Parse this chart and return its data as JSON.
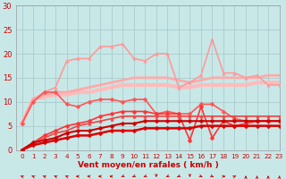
{
  "x": [
    0,
    1,
    2,
    3,
    4,
    5,
    6,
    7,
    8,
    9,
    10,
    11,
    12,
    13,
    14,
    15,
    16,
    17,
    18,
    19,
    20,
    21,
    22,
    23
  ],
  "series": [
    {
      "y": [
        0,
        1,
        1.5,
        2,
        2.5,
        3,
        3,
        3.5,
        4,
        4,
        4,
        4.5,
        4.5,
        4.5,
        4.5,
        4.5,
        5,
        5,
        5,
        5,
        5,
        5,
        5,
        5
      ],
      "color": "#dd0000",
      "lw": 1.8,
      "marker": "D",
      "ms": 2.5,
      "zorder": 5
    },
    {
      "y": [
        0,
        1.5,
        2,
        2.5,
        3.5,
        4,
        4,
        4.5,
        5,
        5.5,
        5.5,
        6,
        6,
        6,
        6,
        6,
        6,
        6,
        6,
        6,
        6,
        6,
        6,
        6
      ],
      "color": "#cc0000",
      "lw": 1.5,
      "marker": "D",
      "ms": 2.5,
      "zorder": 5
    },
    {
      "y": [
        5.5,
        10.5,
        11,
        11.5,
        11.5,
        12,
        12,
        12.5,
        13,
        13.5,
        13.5,
        13.5,
        13.5,
        13.5,
        13,
        13,
        13.5,
        13.5,
        13.5,
        13.5,
        13.5,
        14,
        14,
        14
      ],
      "color": "#ffbbbb",
      "lw": 3.0,
      "marker": null,
      "ms": 0,
      "zorder": 2
    },
    {
      "y": [
        5.5,
        10.5,
        11.5,
        12,
        12,
        12.5,
        13,
        13.5,
        14,
        14.5,
        15,
        15,
        15,
        15,
        14.5,
        14,
        14.5,
        15,
        15,
        15,
        15,
        15,
        15.5,
        15.5
      ],
      "color": "#ffaaaa",
      "lw": 2.0,
      "marker": null,
      "ms": 0,
      "zorder": 2
    },
    {
      "y": [
        5.5,
        10.5,
        12,
        13,
        18.5,
        19,
        19,
        21.5,
        21.5,
        22,
        19,
        18.5,
        20,
        20,
        13,
        14,
        15.5,
        23,
        16,
        16,
        15,
        15.5,
        13.5,
        13.5
      ],
      "color": "#ff9999",
      "lw": 1.2,
      "marker": "^",
      "ms": 2.5,
      "zorder": 3
    },
    {
      "y": [
        5.5,
        10,
        12,
        12,
        9.5,
        9,
        10,
        10.5,
        10.5,
        10,
        10.5,
        10.5,
        7.5,
        8,
        7.5,
        7.5,
        9.5,
        9.5,
        8,
        6.5,
        6,
        6,
        6,
        6
      ],
      "color": "#ff5555",
      "lw": 1.2,
      "marker": "D",
      "ms": 2.5,
      "zorder": 4
    },
    {
      "y": [
        0,
        1.5,
        3,
        4,
        5,
        5.5,
        6,
        7,
        7.5,
        8,
        8,
        8,
        7.5,
        7.5,
        7.5,
        2,
        9,
        2.5,
        6,
        5,
        5.5,
        6,
        6,
        6
      ],
      "color": "#ff3333",
      "lw": 1.2,
      "marker": "D",
      "ms": 2.5,
      "zorder": 4
    },
    {
      "y": [
        0,
        1.5,
        2.5,
        3.5,
        4,
        5,
        5.5,
        6,
        6.5,
        7,
        7,
        7,
        7,
        7,
        7,
        7,
        7,
        7,
        7,
        7,
        7,
        7,
        7,
        7
      ],
      "color": "#ee4444",
      "lw": 1.2,
      "marker": "^",
      "ms": 2.5,
      "zorder": 4
    }
  ],
  "ylim": [
    0,
    30
  ],
  "xlim": [
    -0.5,
    23
  ],
  "yticks": [
    0,
    5,
    10,
    15,
    20,
    25,
    30
  ],
  "xticks": [
    0,
    1,
    2,
    3,
    4,
    5,
    6,
    7,
    8,
    9,
    10,
    11,
    12,
    13,
    14,
    15,
    16,
    17,
    18,
    19,
    20,
    21,
    22,
    23
  ],
  "xlabel": "Vent moyen/en rafales ( km/h )",
  "bg_color": "#c8e8e8",
  "grid_color": "#aacccc",
  "tick_color": "#cc0000",
  "label_color": "#cc0000",
  "ytick_fontsize": 6.0,
  "xtick_fontsize": 5.2
}
